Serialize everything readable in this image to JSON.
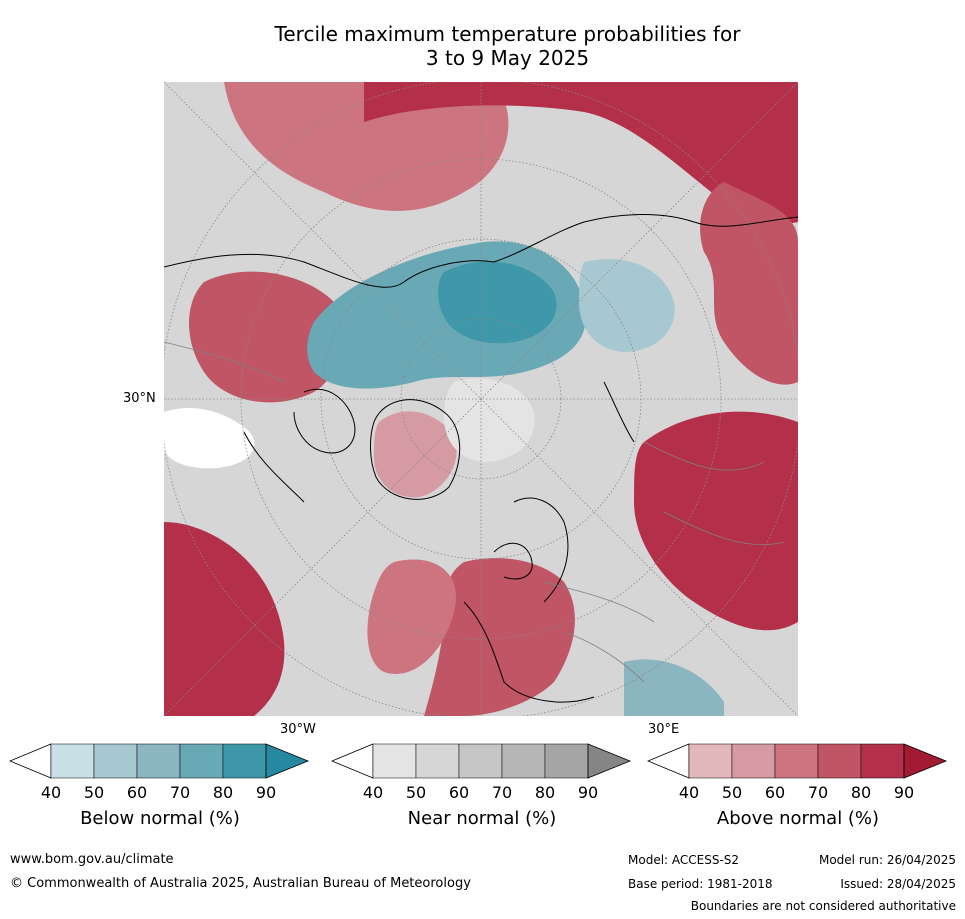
{
  "title_line1": "Tercile maximum temperature probabilities for",
  "title_line2": "3 to 9 May 2025",
  "map": {
    "lat_label": "30°N",
    "lon_label_left": "30°W",
    "lon_label_right": "30°E",
    "colors": {
      "above": [
        "#e2b8bd",
        "#d69aa2",
        "#cc7480",
        "#c05565",
        "#b4304a",
        "#a31b33"
      ],
      "below": [
        "#c9e0e6",
        "#a7c8d0",
        "#8ab5c1",
        "#69a9b6",
        "#3f98aa",
        "#2688a1"
      ],
      "near": [
        "#e4e4e4",
        "#d6d6d6",
        "#c6c6c6",
        "#b6b6b6",
        "#a5a5a5",
        "#858585"
      ],
      "white": "#ffffff"
    }
  },
  "colorbars": [
    {
      "title": "Below normal (%)",
      "ticks": [
        "40",
        "50",
        "60",
        "70",
        "80",
        "90"
      ],
      "colors": [
        "#c9e0e6",
        "#a7c8d0",
        "#8ab5c1",
        "#69a9b6",
        "#3f98aa",
        "#2688a1"
      ]
    },
    {
      "title": "Near normal (%)",
      "ticks": [
        "40",
        "50",
        "60",
        "70",
        "80",
        "90"
      ],
      "colors": [
        "#e4e4e4",
        "#d6d6d6",
        "#c6c6c6",
        "#b6b6b6",
        "#a5a5a5",
        "#858585"
      ]
    },
    {
      "title": "Above normal (%)",
      "ticks": [
        "40",
        "50",
        "60",
        "70",
        "80",
        "90"
      ],
      "colors": [
        "#e2b8bd",
        "#d69aa2",
        "#cc7480",
        "#c05565",
        "#b4304a",
        "#a31b33"
      ]
    }
  ],
  "footer": {
    "website": "www.bom.gov.au/climate",
    "copyright": "© Commonwealth of Australia 2025, Australian Bureau of Meteorology",
    "model": "Model: ACCESS-S2",
    "base_period": "Base period: 1981-2018",
    "model_run": "Model run: 26/04/2025",
    "issued": "Issued: 28/04/2025",
    "disclaimer": "Boundaries are not considered authoritative"
  }
}
